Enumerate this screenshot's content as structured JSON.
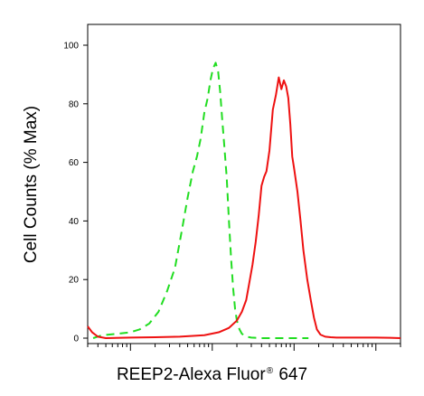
{
  "chart_data": {
    "type": "line",
    "title": "",
    "ylabel": "Cell Counts (% Max)",
    "xlabel": {
      "main": "REEP2-Alexa Fluor",
      "sup": "®",
      "tail": " 647"
    },
    "x_scale": "log",
    "xlim": [
      0.3,
      2000
    ],
    "ylim": [
      0,
      100
    ],
    "yticks": [
      "0",
      "20",
      "40",
      "60",
      "80",
      "100"
    ],
    "ytick_values": [
      0,
      20,
      40,
      60,
      80,
      100
    ],
    "grid": false,
    "series": [
      {
        "color": "#22dd22",
        "style": "dashed",
        "x": [
          0.35,
          0.45,
          0.7,
          1.0,
          1.3,
          1.7,
          2.2,
          2.8,
          3.5,
          4.2,
          5.0,
          5.8,
          6.5,
          7.2,
          8.0,
          8.8,
          9.5,
          10.2,
          11.0,
          11.8,
          12.5,
          13.2,
          14.0,
          15.0,
          16.0,
          17.0,
          18.0,
          19.0,
          20.0,
          21.5,
          23.0,
          25.0,
          27.0,
          30.0,
          34.0,
          40.0,
          50.0,
          70.0,
          100.0,
          150.0
        ],
        "y": [
          0,
          1,
          1.5,
          2,
          3,
          5,
          9,
          16,
          24,
          36,
          48,
          57,
          62,
          68,
          77,
          82,
          88,
          92,
          94,
          91,
          84,
          75,
          66,
          55,
          40,
          27,
          17,
          10,
          6,
          3,
          1.5,
          0.8,
          0.4,
          0.2,
          0.1,
          0,
          0,
          0,
          0,
          0
        ]
      },
      {
        "color": "#ee1111",
        "style": "solid",
        "x": [
          0.3,
          0.34,
          0.4,
          0.5,
          1.0,
          2.0,
          4.0,
          8.0,
          12.0,
          16.0,
          20.0,
          23.0,
          26.0,
          28.0,
          31.0,
          34.0,
          37.0,
          40.0,
          43.0,
          46.0,
          50.0,
          55.0,
          60.0,
          65.0,
          70.0,
          75.0,
          80.0,
          85.0,
          90.0,
          95.0,
          100.0,
          110.0,
          120.0,
          130.0,
          145.0,
          160.0,
          175.0,
          190.0,
          210.0,
          240.0,
          280.0,
          330.0,
          400.0,
          500.0,
          700.0,
          1000.0,
          1500.0,
          2000.0
        ],
        "y": [
          4,
          2,
          0.5,
          0,
          0.2,
          0.3,
          0.5,
          1,
          2,
          3.5,
          6,
          9,
          13,
          18,
          25,
          33,
          42,
          52,
          55,
          57,
          64,
          78,
          83,
          89,
          85,
          88,
          86,
          82,
          73,
          62,
          58,
          50,
          40,
          30,
          20,
          13,
          7,
          3,
          1.2,
          0.5,
          0.3,
          0.2,
          0.2,
          0.2,
          0.2,
          0.2,
          0.1,
          0
        ]
      }
    ]
  }
}
